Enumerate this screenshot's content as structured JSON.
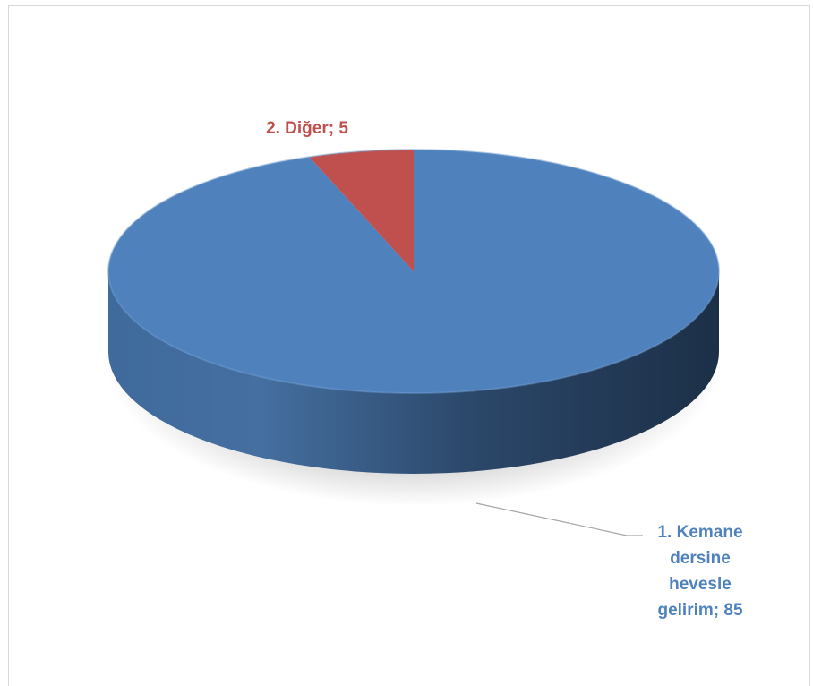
{
  "chart_data": {
    "type": "pie",
    "style": "3d",
    "slices": [
      {
        "label": "1. Kemane dersine hevesle gelirim",
        "value": 85,
        "color": "#4f81bd",
        "label_lines": [
          "1. Kemane",
          "dersine",
          "hevesle",
          "gelirim; 85"
        ]
      },
      {
        "label": "2. Diğer",
        "value": 5,
        "color": "#c0504d",
        "label_lines": [
          "2. Diğer; 5"
        ]
      }
    ],
    "legend": "none",
    "data_labels": "category; value"
  }
}
